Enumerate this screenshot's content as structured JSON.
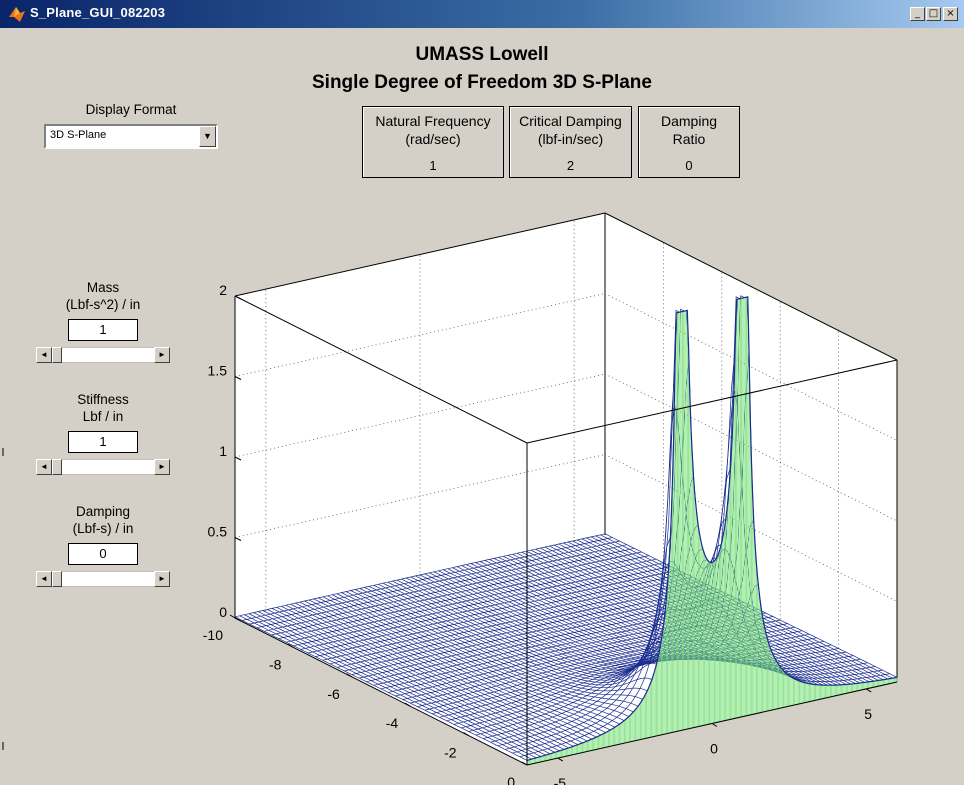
{
  "window": {
    "title": "S_Plane_GUI_082203",
    "minimize_glyph": "_",
    "maximize_glyph": "□",
    "close_glyph": "×"
  },
  "header": {
    "line1": "UMASS Lowell",
    "line2": "Single Degree of Freedom 3D S-Plane"
  },
  "display_format": {
    "label": "Display Format",
    "selected": "3D S-Plane",
    "arrow": "▼"
  },
  "readouts": [
    {
      "label_line1": "Natural Frequency",
      "label_line2": "(rad/sec)",
      "value": "1"
    },
    {
      "label_line1": "Critical Damping",
      "label_line2": "(lbf-in/sec)",
      "value": "2"
    },
    {
      "label_line1": "Damping",
      "label_line2": "Ratio",
      "value": "0"
    }
  ],
  "controls": {
    "mass": {
      "label_line1": "Mass",
      "label_line2": "(Lbf-s^2) / in",
      "value": "1"
    },
    "stiffness": {
      "label_line1": "Stiffness",
      "label_line2": "Lbf / in",
      "value": "1"
    },
    "damping": {
      "label_line1": "Damping",
      "label_line2": "(Lbf-s) / in",
      "value": "0"
    },
    "left_arrow": "◄",
    "right_arrow": "►"
  },
  "colors": {
    "background": "#d4d0c8",
    "surface_line": "#1a2d8f",
    "wall_line": "#7de07d",
    "titlebar_start": "#0a246a"
  },
  "chart_data": {
    "type": "surface",
    "title": "",
    "z_ticks": [
      "0",
      "0.5",
      "1",
      "1.5",
      "2"
    ],
    "x_ticks": [
      "-10",
      "-8",
      "-6",
      "-4",
      "-2",
      "0"
    ],
    "y_ticks": [
      "-5",
      "0",
      "5"
    ],
    "zlim": [
      0,
      2
    ],
    "xlim": [
      -10,
      0
    ],
    "ylim": [
      -6,
      6
    ],
    "grid": true,
    "poles": [
      {
        "real": 0,
        "imag": 1
      },
      {
        "real": 0,
        "imag": -1
      }
    ],
    "notch_value": 0.5
  }
}
